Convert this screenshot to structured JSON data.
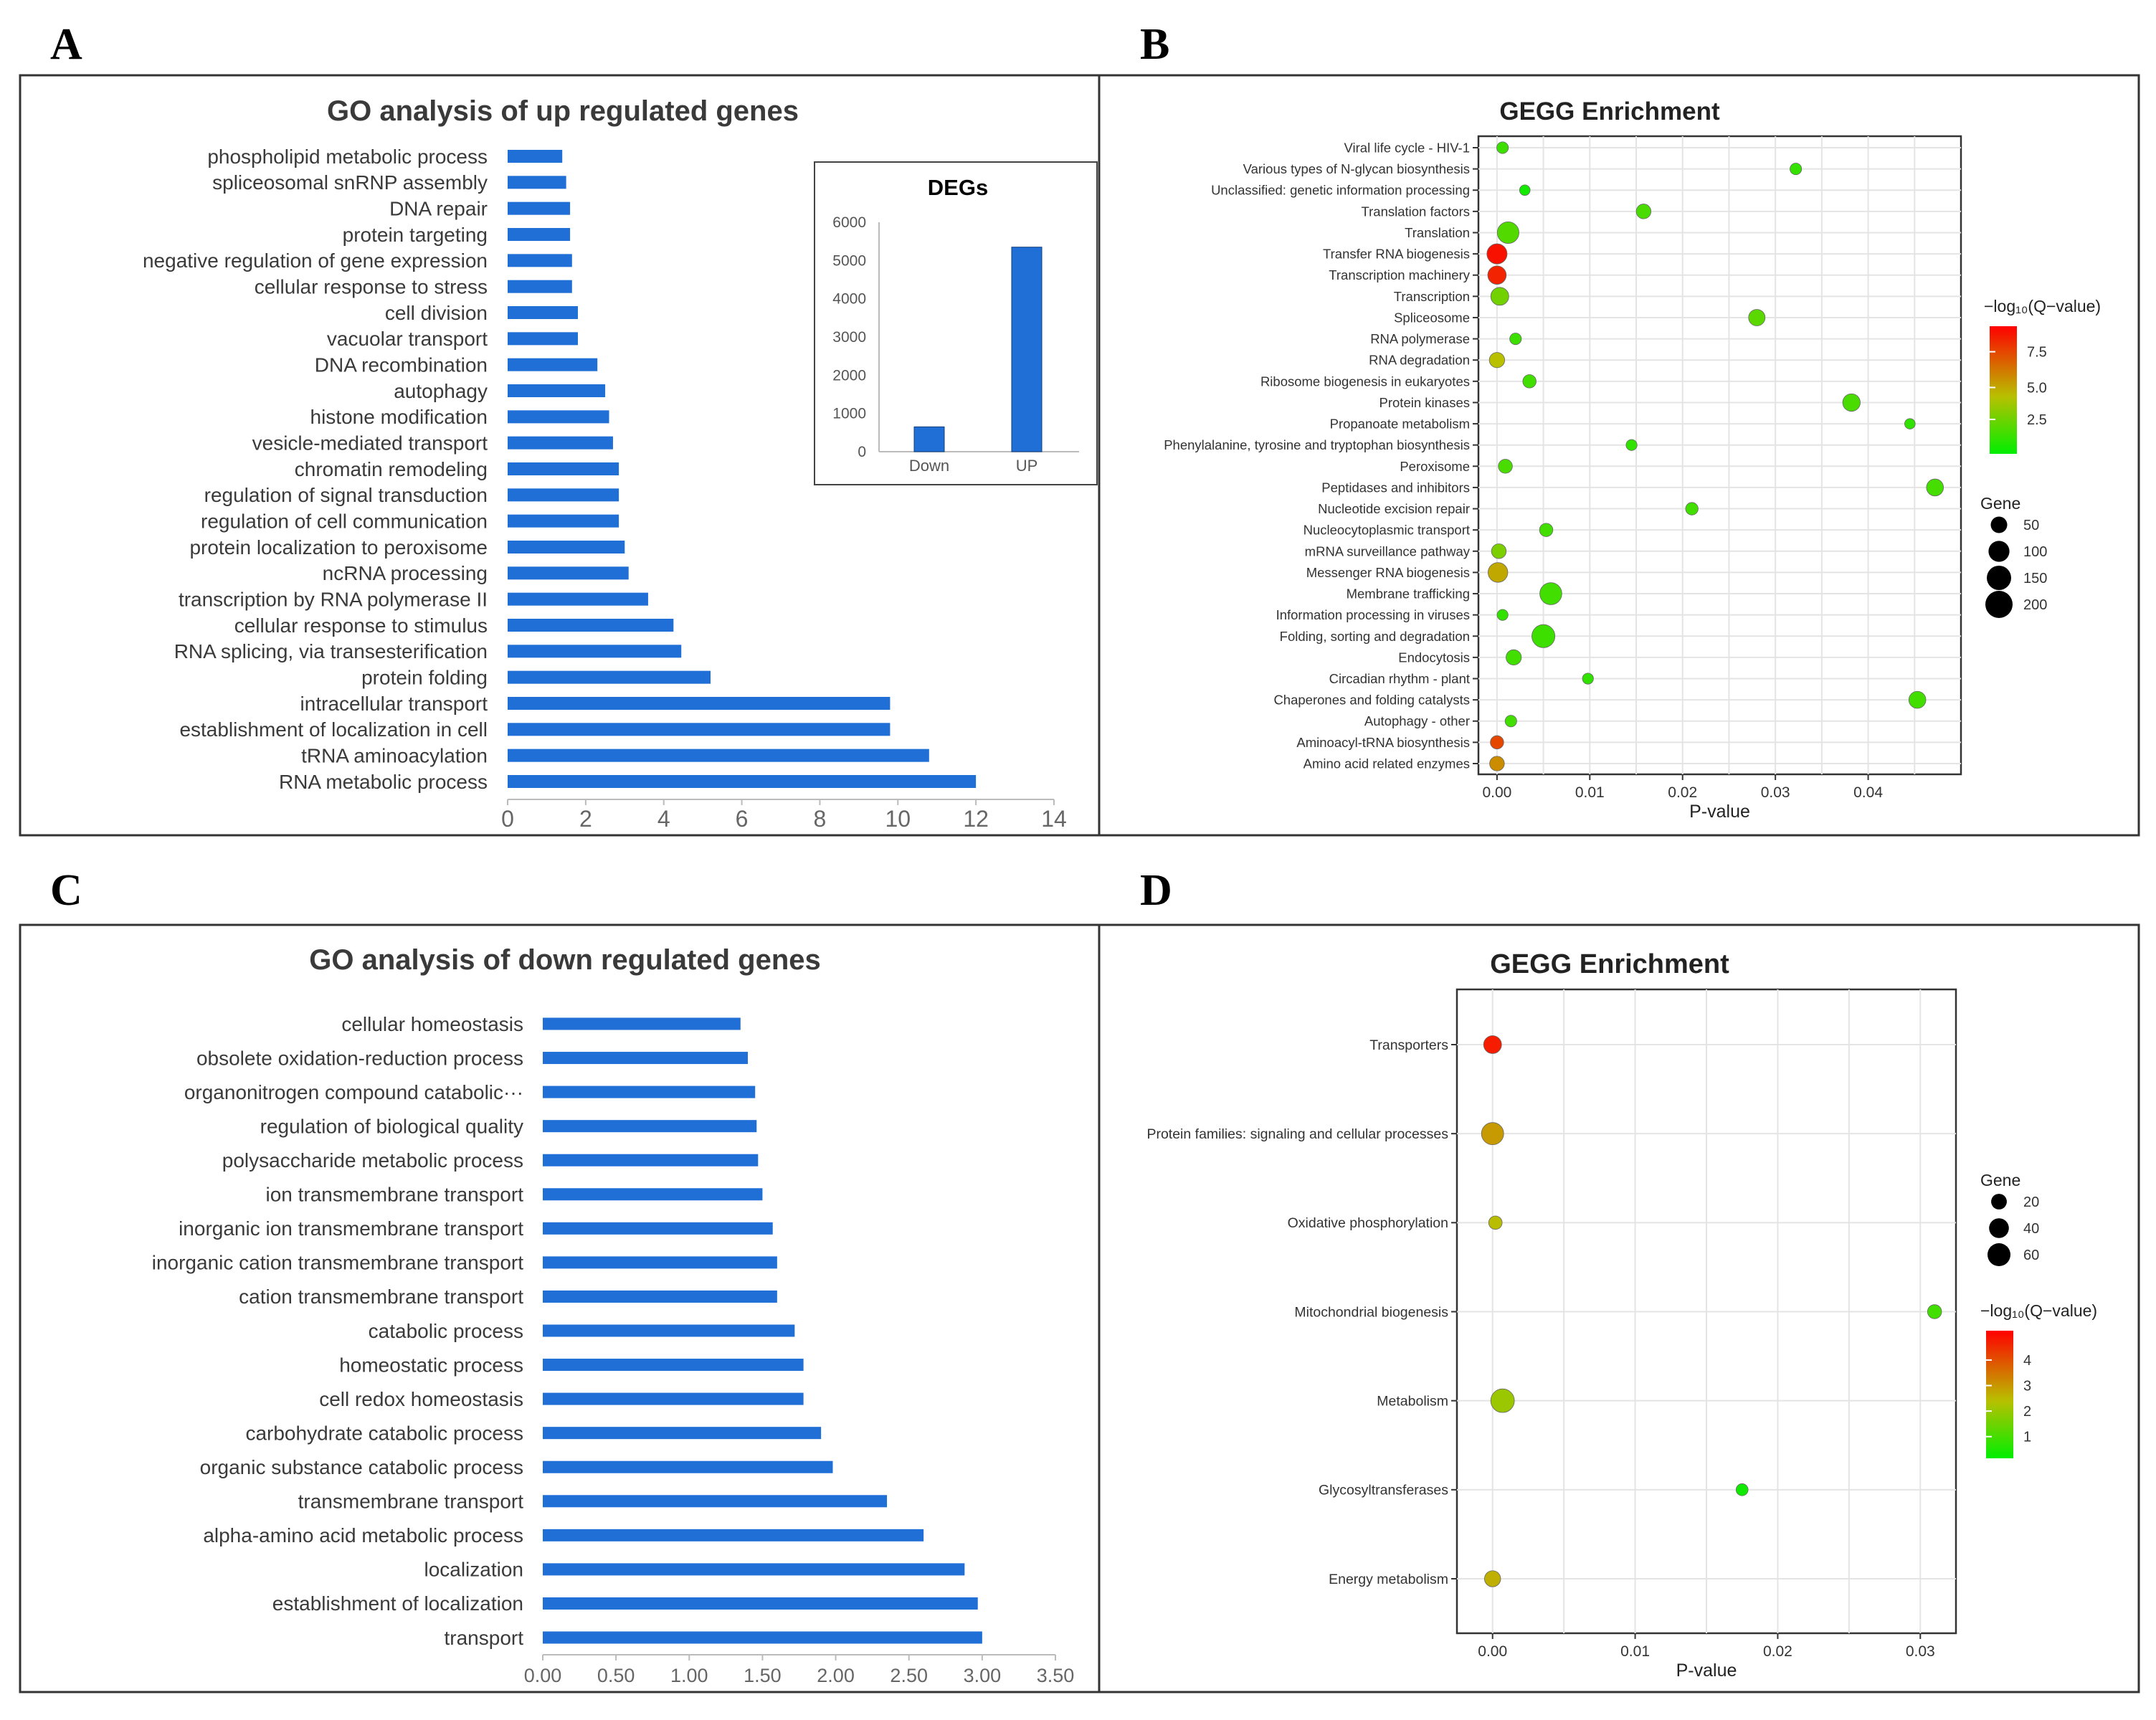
{
  "panel_labels": [
    "A",
    "B",
    "C",
    "D"
  ],
  "chart_data": [
    {
      "id": "A",
      "type": "bar",
      "orientation": "horizontal",
      "title": "GO analysis of up regulated genes",
      "categories": [
        "phospholipid metabolic process",
        "spliceosomal snRNP assembly",
        "DNA repair",
        "protein targeting",
        "negative regulation of gene expression",
        "cellular response to stress",
        "cell division",
        "vacuolar transport",
        "DNA recombination",
        "autophagy",
        "histone modification",
        "vesicle-mediated transport",
        "chromatin remodeling",
        "regulation of signal transduction",
        "regulation of cell communication",
        "protein localization to peroxisome",
        "ncRNA processing",
        "transcription by RNA polymerase II",
        "cellular response to stimulus",
        "RNA splicing, via transesterification",
        "protein folding",
        "intracellular transport",
        "establishment of localization in cell",
        "tRNA aminoacylation",
        "RNA metabolic process"
      ],
      "values": [
        1.4,
        1.5,
        1.6,
        1.6,
        1.65,
        1.65,
        1.8,
        1.8,
        2.3,
        2.5,
        2.6,
        2.7,
        2.85,
        2.85,
        2.85,
        3.0,
        3.1,
        3.6,
        4.25,
        4.45,
        5.2,
        9.8,
        9.8,
        10.8,
        12.0
      ],
      "xlim": [
        0,
        14
      ],
      "xticks": [
        "0",
        "2",
        "4",
        "6",
        "8",
        "10",
        "12",
        "14"
      ]
    },
    {
      "id": "A-inset",
      "type": "bar",
      "title": "DEGs",
      "categories": [
        "Down",
        "UP"
      ],
      "values": [
        650,
        5350
      ],
      "ylim": [
        0,
        6000
      ],
      "yticks": [
        "0",
        "1000",
        "2000",
        "3000",
        "4000",
        "5000",
        "6000"
      ]
    },
    {
      "id": "B",
      "type": "scatter",
      "title": "GEGG Enrichment",
      "xlabel": "P-value",
      "xlim": [
        -0.002,
        0.05
      ],
      "xticks": [
        "0.00",
        "0.01",
        "0.02",
        "0.03",
        "0.04"
      ],
      "categories": [
        "Viral life cycle - HIV-1",
        "Various types of N-glycan biosynthesis",
        "Unclassified: genetic information processing",
        "Translation factors",
        "Translation",
        "Transfer RNA biogenesis",
        "Transcription machinery",
        "Transcription",
        "Spliceosome",
        "RNA polymerase",
        "RNA degradation",
        "Ribosome biogenesis in eukaryotes",
        "Protein kinases",
        "Propanoate metabolism",
        "Phenylalanine, tyrosine and tryptophan biosynthesis",
        "Peroxisome",
        "Peptidases and inhibitors",
        "Nucleotide excision repair",
        "Nucleocytoplasmic transport",
        "mRNA surveillance pathway",
        "Messenger RNA biogenesis",
        "Membrane trafficking",
        "Information processing in viruses",
        "Folding, sorting and degradation",
        "Endocytosis",
        "Circadian rhythm - plant",
        "Chaperones and folding catalysts",
        "Autophagy - other",
        "Aminoacyl-tRNA biosynthesis",
        "Amino acid related enzymes"
      ],
      "x": [
        0.0006,
        0.0322,
        0.003,
        0.0158,
        0.0012,
        0,
        0,
        0.0003,
        0.028,
        0.002,
        0,
        0.0035,
        0.0382,
        0.0445,
        0.0145,
        0.0009,
        0.0472,
        0.021,
        0.0053,
        0.0002,
        0.0001,
        0.0058,
        0.0006,
        0.005,
        0.0018,
        0.0098,
        0.0453,
        0.0015,
        0,
        0
      ],
      "gene": [
        15,
        15,
        10,
        35,
        110,
        90,
        70,
        65,
        50,
        15,
        40,
        25,
        60,
        10,
        12,
        30,
        55,
        20,
        25,
        35,
        85,
        115,
        12,
        130,
        40,
        12,
        55,
        15,
        25,
        35
      ],
      "qvalue": [
        1.5,
        1.3,
        0.5,
        1.8,
        2.0,
        9.5,
        9.0,
        2.8,
        2.2,
        1.5,
        4.5,
        1.6,
        1.8,
        1.2,
        1.2,
        1.8,
        1.7,
        1.6,
        1.6,
        3.0,
        5.2,
        1.6,
        1.2,
        1.5,
        1.6,
        1.2,
        1.6,
        1.6,
        8.0,
        6.0
      ],
      "color_legend": {
        "title": "−log₁₀(Q−value)",
        "ticks": [
          "2.5",
          "5.0",
          "7.5"
        ]
      },
      "size_legend": {
        "title": "Gene",
        "ticks": [
          "50",
          "100",
          "150",
          "200"
        ]
      }
    },
    {
      "id": "C",
      "type": "bar",
      "orientation": "horizontal",
      "title": "GO analysis of down regulated genes",
      "categories": [
        "cellular homeostasis",
        "obsolete oxidation-reduction process",
        "organonitrogen compound catabolic···",
        "regulation of biological quality",
        "polysaccharide metabolic process",
        "ion transmembrane transport",
        "inorganic ion transmembrane transport",
        "inorganic cation transmembrane transport",
        "cation transmembrane transport",
        "catabolic process",
        "homeostatic process",
        "cell redox homeostasis",
        "carbohydrate catabolic process",
        "organic substance catabolic process",
        "transmembrane transport",
        "alpha-amino acid metabolic process",
        "localization",
        "establishment of localization",
        "transport"
      ],
      "values": [
        1.35,
        1.4,
        1.45,
        1.46,
        1.47,
        1.5,
        1.57,
        1.6,
        1.6,
        1.72,
        1.78,
        1.78,
        1.9,
        1.98,
        2.35,
        2.6,
        2.88,
        2.97,
        3.0
      ],
      "xlim": [
        0,
        3.5
      ],
      "xticks": [
        "0.00",
        "0.50",
        "1.00",
        "1.50",
        "2.00",
        "2.50",
        "3.00",
        "3.50"
      ]
    },
    {
      "id": "D",
      "type": "scatter",
      "title": "GEGG Enrichment",
      "xlabel": "P-value",
      "xlim": [
        -0.0025,
        0.0325
      ],
      "xticks": [
        "0.00",
        "0.01",
        "0.02",
        "0.03"
      ],
      "categories": [
        "Transporters",
        "Protein families: signaling and cellular processes",
        "Oxidative phosphorylation",
        "Mitochondrial biogenesis",
        "Metabolism",
        "Glycosyltransferases",
        "Energy metabolism"
      ],
      "x": [
        0.0,
        0.0,
        0.0002,
        0.031,
        0.0007,
        0.0175,
        0.0
      ],
      "gene": [
        30,
        55,
        12,
        14,
        65,
        8,
        22
      ],
      "qvalue": [
        4.6,
        2.8,
        2.3,
        0.8,
        1.9,
        0.2,
        2.5
      ],
      "color_legend": {
        "title": "−log₁₀(Q−value)",
        "ticks": [
          "1",
          "2",
          "3",
          "4"
        ]
      },
      "size_legend": {
        "title": "Gene",
        "ticks": [
          "20",
          "40",
          "60"
        ]
      }
    }
  ]
}
